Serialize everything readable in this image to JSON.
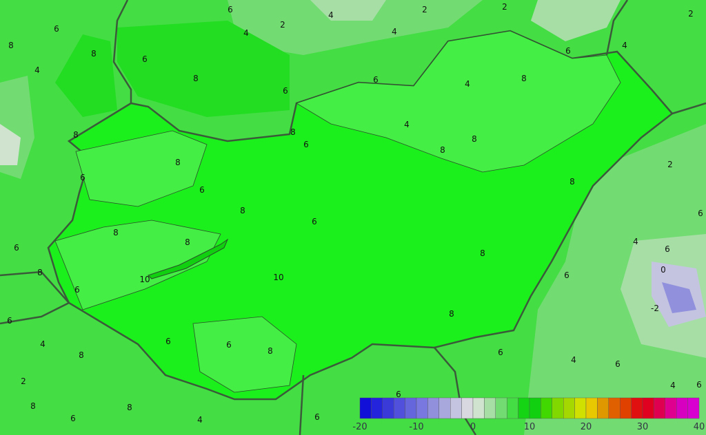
{
  "map": {
    "variable_colors": {
      "background": "#44dd44",
      "hungary_fill": "#1cf01c",
      "border": "#3a5a3a"
    },
    "contour_labels": [
      "6",
      "2",
      "2",
      "2",
      "4",
      "4",
      "6",
      "4",
      "8",
      "6",
      "8",
      "4",
      "2",
      "8",
      "6",
      "4",
      "8",
      "6",
      "8",
      "4",
      "6",
      "4",
      "8",
      "6",
      "8",
      "8",
      "8",
      "6",
      "8",
      "6",
      "8",
      "10",
      "8",
      "10",
      "8",
      "6",
      "6",
      "8",
      "6",
      "6",
      "6",
      "6",
      "8",
      "4",
      "2",
      "0",
      "-2",
      "6",
      "4",
      "4",
      "6",
      "6",
      "4",
      "6",
      "8",
      "6",
      "8",
      "6",
      "8",
      "8",
      "6",
      "4",
      "2",
      "8",
      "6",
      "6"
    ]
  },
  "legend": {
    "colors": [
      "#1010d8",
      "#2424dc",
      "#3a3ad8",
      "#5050dc",
      "#6565dc",
      "#7878e0",
      "#9090dc",
      "#a8a8dc",
      "#c4c4e0",
      "#d8d8e0",
      "#cfe3cf",
      "#a6dea6",
      "#72dc72",
      "#44dd44",
      "#14d414",
      "#10d010",
      "#40d800",
      "#80d800",
      "#a4d800",
      "#d0e000",
      "#e8c800",
      "#e09800",
      "#e06000",
      "#e04000",
      "#e01010",
      "#e00020",
      "#e00050",
      "#e00090",
      "#d800c0",
      "#d800d0"
    ],
    "ticks": [
      "-20",
      "-10",
      "0",
      "10",
      "20",
      "30",
      "40"
    ]
  }
}
